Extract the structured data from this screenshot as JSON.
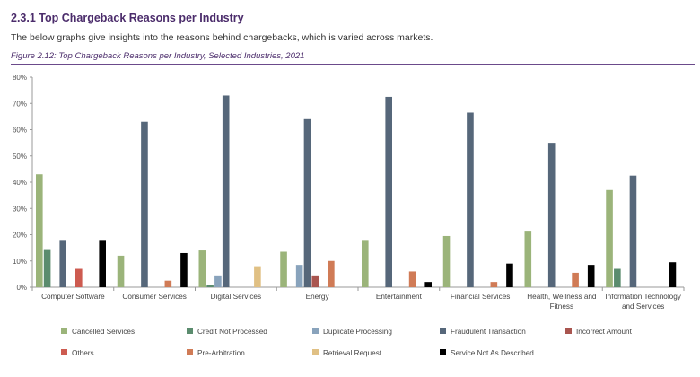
{
  "heading": {
    "section_title": "2.3.1 Top Chargeback Reasons per Industry",
    "intro": "The below graphs give insights into the reasons behind chargebacks, which is varied across markets.",
    "figure_caption": "Figure 2.12: Top Chargeback Reasons per Industry, Selected Industries, 2021"
  },
  "chart_data": {
    "type": "bar",
    "title": "",
    "xlabel": "",
    "ylabel": "",
    "ylim": [
      0,
      80
    ],
    "yticks": [
      0,
      10,
      20,
      30,
      40,
      50,
      60,
      70,
      80
    ],
    "ytick_labels": [
      "0%",
      "10%",
      "20%",
      "30%",
      "40%",
      "50%",
      "60%",
      "70%",
      "80%"
    ],
    "grid": false,
    "legend_position": "bottom",
    "categories": [
      "Computer Software",
      "Consumer Services",
      "Digital Services",
      "Energy",
      "Entertainment",
      "Financial Services",
      "Health, Wellness and Fitness",
      "Information Technology and Services"
    ],
    "category_label_lines": [
      [
        "Computer Software"
      ],
      [
        "Consumer Services"
      ],
      [
        "Digital Services"
      ],
      [
        "Energy"
      ],
      [
        "Entertainment"
      ],
      [
        "Financial Services"
      ],
      [
        "Health, Wellness and",
        "Fitness"
      ],
      [
        "Information Technology",
        "and Services"
      ]
    ],
    "series": [
      {
        "name": "Cancelled Services",
        "color": "#9bb47a",
        "values": [
          43,
          12,
          14,
          13.5,
          18,
          19.5,
          21.5,
          37
        ]
      },
      {
        "name": "Credit Not Processed",
        "color": "#5b8c6e",
        "values": [
          14.5,
          0,
          0.8,
          0,
          0,
          0,
          0,
          7
        ]
      },
      {
        "name": "Duplicate Processing",
        "color": "#89a3bc",
        "values": [
          0,
          0,
          4.5,
          8.5,
          0,
          0,
          0,
          0
        ]
      },
      {
        "name": "Fraudulent Transaction",
        "color": "#56677a",
        "values": [
          18,
          63,
          73,
          64,
          72.5,
          66.5,
          55,
          42.5
        ]
      },
      {
        "name": "Incorrect Amount",
        "color": "#a9554f",
        "values": [
          0,
          0,
          0,
          4.5,
          0,
          0,
          0,
          0
        ]
      },
      {
        "name": "Others",
        "color": "#cd5b50",
        "values": [
          7,
          0,
          0,
          0,
          0,
          0,
          0,
          0
        ]
      },
      {
        "name": "Pre-Arbitration",
        "color": "#d07b56",
        "values": [
          0,
          2.5,
          0,
          10,
          6,
          2,
          5.5,
          0
        ]
      },
      {
        "name": "Retrieval Request",
        "color": "#e0c084",
        "values": [
          0,
          0,
          8,
          0,
          0,
          0,
          0,
          0
        ]
      },
      {
        "name": "Service Not As Described",
        "color": "#000000",
        "values": [
          18,
          13,
          0,
          0,
          2,
          9,
          8.5,
          9.5
        ]
      }
    ],
    "legend_rows": [
      [
        "Cancelled Services",
        "Credit Not Processed",
        "Duplicate Processing",
        "Fraudulent Transaction",
        "Incorrect Amount"
      ],
      [
        "Others",
        "Pre-Arbitration",
        "Retrieval Request",
        "Service Not As Described"
      ]
    ]
  },
  "colors": {
    "heading": "#4b2c6b",
    "axis": "#999999"
  }
}
